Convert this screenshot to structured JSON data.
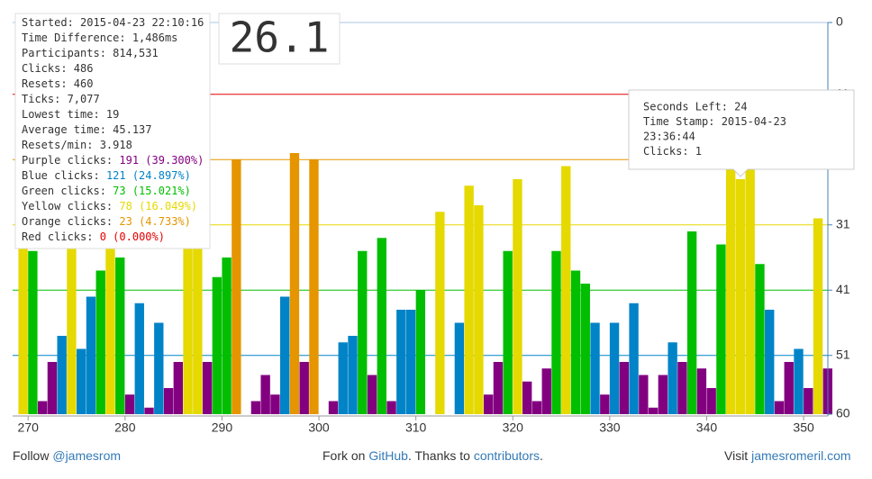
{
  "chart_data": {
    "type": "bar",
    "x": [
      269,
      270,
      271,
      272,
      273,
      274,
      275,
      276,
      277,
      278,
      279,
      280,
      281,
      282,
      283,
      284,
      285,
      286,
      287,
      288,
      289,
      290,
      291,
      292,
      293,
      294,
      295,
      296,
      297,
      298,
      299,
      300,
      301,
      302,
      303,
      304,
      305,
      306,
      307,
      308,
      309,
      310,
      311,
      312,
      313,
      314,
      315,
      316,
      317,
      318,
      319,
      320,
      321,
      322,
      323,
      324,
      325,
      326,
      327,
      328,
      329,
      330,
      331,
      332,
      333,
      334,
      335,
      336,
      337,
      338,
      339,
      340,
      341,
      342,
      343,
      344,
      345,
      346,
      347,
      348,
      349,
      350,
      351,
      352
    ],
    "values": [
      29,
      35,
      58,
      52,
      48,
      28,
      50,
      42,
      38,
      27,
      36,
      57,
      43,
      59,
      46,
      56,
      52,
      25,
      25,
      52,
      39,
      36,
      21,
      null,
      58,
      54,
      57,
      42,
      20,
      52,
      21,
      null,
      58,
      49,
      48,
      35,
      54,
      33,
      58,
      44,
      44,
      41,
      null,
      29,
      null,
      46,
      25,
      28,
      57,
      52,
      35,
      24,
      55,
      58,
      53,
      35,
      22,
      38,
      40,
      46,
      57,
      46,
      52,
      43,
      54,
      59,
      54,
      49,
      52,
      32,
      53,
      56,
      34,
      22,
      24,
      22,
      37,
      44,
      58,
      52,
      50,
      56,
      30,
      53
    ],
    "bands": [
      {
        "max": 11,
        "color": "#e50000"
      },
      {
        "max": 21,
        "color": "#e59500"
      },
      {
        "max": 31,
        "color": "#e5d900"
      },
      {
        "max": 41,
        "color": "#02be01"
      },
      {
        "max": 51,
        "color": "#0083c7"
      },
      {
        "max": 60,
        "color": "#820080"
      }
    ],
    "xlim": [
      268.4,
      352.5
    ],
    "xticks": [
      270,
      280,
      290,
      300,
      310,
      320,
      330,
      340,
      350
    ],
    "ylim": [
      0,
      60
    ],
    "yticks": [
      0,
      11,
      21,
      31,
      41,
      51,
      60
    ],
    "y_inverted": true,
    "timer": "26.1",
    "stats": [
      {
        "label": "Started: 2015-04-23 22:10:16"
      },
      {
        "label": "Time Difference: 1,486ms"
      },
      {
        "label": "Participants: 814,531"
      },
      {
        "label": "Clicks: 486"
      },
      {
        "label": "Resets: 460"
      },
      {
        "label": "Ticks: 7,077"
      },
      {
        "label": "Lowest time: 19"
      },
      {
        "label": "Average time: 45.137"
      },
      {
        "label": "Resets/min: 3.918"
      },
      {
        "label": "Purple clicks:",
        "value": "191 (39.300%)",
        "color": "#820080"
      },
      {
        "label": "Blue clicks:",
        "value": "121 (24.897%)",
        "color": "#0083c7"
      },
      {
        "label": "Green clicks:",
        "value": "73 (15.021%)",
        "color": "#02be01"
      },
      {
        "label": "Yellow clicks:",
        "value": "78 (16.049%)",
        "color": "#e5d900"
      },
      {
        "label": "Orange clicks:",
        "value": "23 (4.733%)",
        "color": "#e59500"
      },
      {
        "label": "Red clicks:",
        "value": "0 (0.000%)",
        "color": "#e50000"
      }
    ],
    "tooltip": [
      "Seconds Left: 24",
      "Time Stamp: 2015-04-23",
      "23:36:44",
      "Clicks: 1"
    ]
  },
  "footer": {
    "follow": "Follow ",
    "handle": "@jamesrom",
    "fork": "Fork on ",
    "github": "GitHub",
    "thanks": ". Thanks to ",
    "contributors": "contributors",
    "end": ".",
    "visit": "Visit ",
    "site": "jamesromeril.com"
  }
}
